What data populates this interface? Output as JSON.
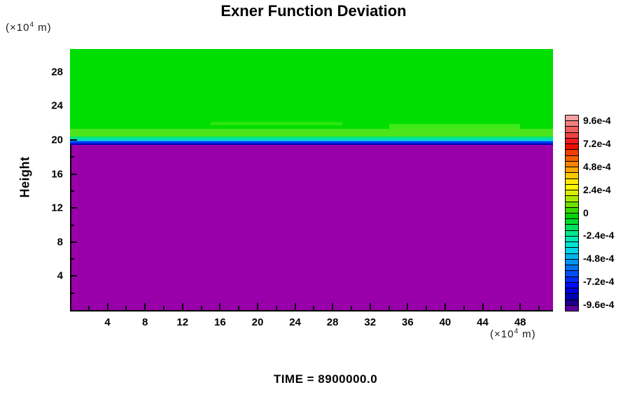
{
  "title": "Exner Function Deviation",
  "time_label": "TIME = 8900000.0",
  "y_axis": {
    "label": "Height",
    "unit_prefix": "(×10",
    "unit_exponent": "4",
    "unit_suffix": " m)",
    "tick_labels": [
      4,
      8,
      12,
      16,
      20,
      24,
      28
    ],
    "minor_tick_step": 2,
    "range": [
      0,
      30.7
    ]
  },
  "x_axis": {
    "unit_prefix": "(×10",
    "unit_exponent": "4",
    "unit_suffix": " m)",
    "tick_labels": [
      4,
      8,
      12,
      16,
      20,
      24,
      28,
      32,
      36,
      40,
      44,
      48
    ],
    "minor_tick_step": 2,
    "range": [
      0,
      51.5
    ]
  },
  "colorbar": {
    "labels": [
      "9.6e-4",
      "7.2e-4",
      "4.8e-4",
      "2.4e-4",
      "0",
      "-2.4e-4",
      "-4.8e-4",
      "-7.2e-4",
      "-9.6e-4"
    ],
    "colors": [
      "#f4a2a2",
      "#f28080",
      "#f06060",
      "#ee4242",
      "#ee1c1c",
      "#ee0f00",
      "#f23d00",
      "#f56000",
      "#f88300",
      "#faa500",
      "#fcc800",
      "#feea00",
      "#fff600",
      "#d8f000",
      "#a8e800",
      "#70e000",
      "#38d800",
      "#00d400",
      "#00da30",
      "#00e060",
      "#00e690",
      "#00e8b4",
      "#00e4d4",
      "#00d4e4",
      "#00b4ee",
      "#0092f2",
      "#0070f4",
      "#004ef6",
      "#002cf8",
      "#000cfa",
      "#0000dc",
      "#0000b4",
      "#1c008c",
      "#5c00a0"
    ]
  },
  "chart_data": {
    "type": "heatmap",
    "title": "Exner Function Deviation",
    "xlabel": "(×10^4 m)",
    "ylabel": "Height (×10^4 m)",
    "x_range": [
      0,
      51.5
    ],
    "y_range": [
      0,
      30.7
    ],
    "time": 8900000.0,
    "levels": {
      "min": "-9.6e-4",
      "max": "9.6e-4",
      "label_step": "2.4e-4",
      "cell_step": "0.6e-4"
    },
    "legend_position": "right",
    "grid": false,
    "bands": [
      {
        "y_from": 21.3,
        "y_to": 30.7,
        "value": "≈ 0",
        "color": "#00dd00"
      },
      {
        "y_from": 20.45,
        "y_to": 21.3,
        "value": "≈ +1.2e-4",
        "color": "#4ce41c"
      },
      {
        "y_from": 20.15,
        "y_to": 20.45,
        "value": "≈ -1.2e-4",
        "color": "#00e57a"
      },
      {
        "y_from": 19.95,
        "y_to": 20.15,
        "value": "≈ -2.4e-4",
        "color": "#00dbc8"
      },
      {
        "y_from": 19.8,
        "y_to": 19.95,
        "value": "≈ -4.2e-4",
        "color": "#00a2f8"
      },
      {
        "y_from": 19.62,
        "y_to": 19.8,
        "value": "≈ -6.6e-4",
        "color": "#0033ee"
      },
      {
        "y_from": 19.45,
        "y_to": 19.62,
        "value": "≈ -8.4e-4",
        "color": "#0000b4"
      },
      {
        "y_from": 0,
        "y_to": 19.45,
        "value": "< -9.6e-4",
        "color": "#9900aa"
      }
    ],
    "streaks": [
      {
        "x_from": 15,
        "x_to": 29,
        "y_from": 21.7,
        "y_to": 22.1,
        "color": "#2ae60e"
      },
      {
        "x_from": 34,
        "x_to": 48,
        "y_from": 21.3,
        "y_to": 21.9,
        "color": "#3ce816"
      }
    ],
    "description": "Exner function deviation is ≈0 (green) above height ~20×10^4 m, with a sharp negative transition layer near height 20, and strongly negative values (below -9.6e-4, purple) beneath it."
  }
}
